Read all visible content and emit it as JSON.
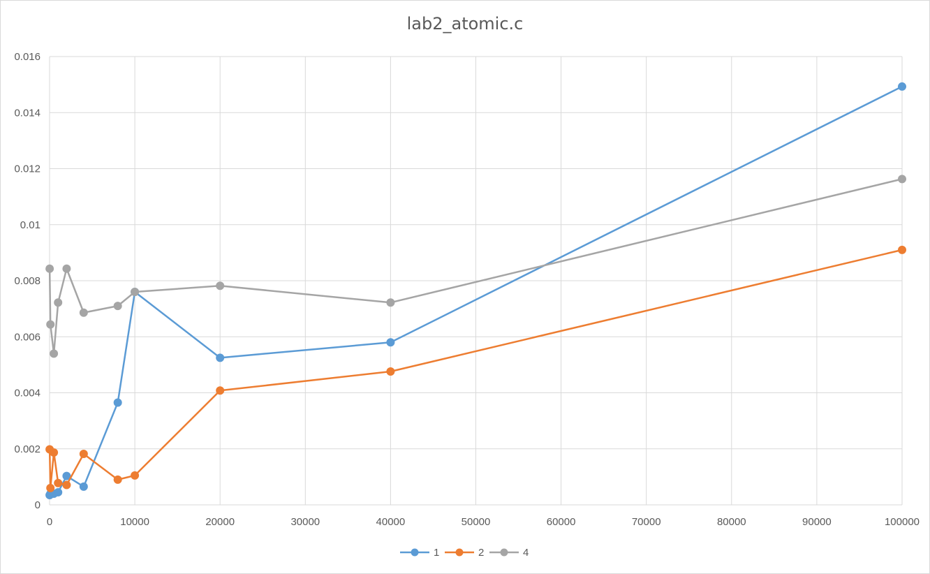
{
  "chart_data": {
    "type": "line",
    "title": "lab2_atomic.c",
    "xlim": [
      0,
      100000
    ],
    "ylim": [
      0,
      0.016
    ],
    "x_ticks": [
      0,
      10000,
      20000,
      30000,
      40000,
      50000,
      60000,
      70000,
      80000,
      90000,
      100000
    ],
    "x_tick_labels": [
      "0",
      "10000",
      "20000",
      "30000",
      "40000",
      "50000",
      "60000",
      "70000",
      "80000",
      "90000",
      "100000"
    ],
    "y_ticks": [
      0,
      0.002,
      0.004,
      0.006,
      0.008,
      0.01,
      0.012,
      0.014,
      0.016
    ],
    "y_tick_labels": [
      "0",
      "0.002",
      "0.004",
      "0.006",
      "0.008",
      "0.01",
      "0.012",
      "0.014",
      "0.016"
    ],
    "grid": true,
    "legend_position": "bottom",
    "x": [
      10,
      100,
      500,
      1000,
      2000,
      4000,
      8000,
      10000,
      20000,
      40000,
      100000
    ],
    "series": [
      {
        "name": "1",
        "color": "#5b9bd5",
        "values": [
          0.00035,
          0.0004,
          0.0004,
          0.00045,
          0.00103,
          0.00065,
          0.00365,
          0.0076,
          0.00525,
          0.0058,
          0.01493
        ]
      },
      {
        "name": "2",
        "color": "#ed7d31",
        "values": [
          0.00198,
          0.0006,
          0.00187,
          0.00078,
          0.00071,
          0.00182,
          0.0009,
          0.00105,
          0.00408,
          0.00476,
          0.0091
        ]
      },
      {
        "name": "4",
        "color": "#a5a5a5",
        "values": [
          0.00843,
          0.00644,
          0.0054,
          0.00722,
          0.00843,
          0.00686,
          0.0071,
          0.0076,
          0.00782,
          0.00722,
          0.01163
        ]
      }
    ]
  }
}
